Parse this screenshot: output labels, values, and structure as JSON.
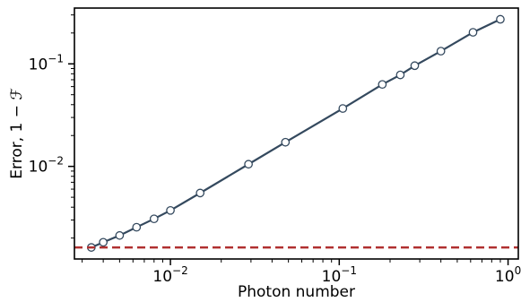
{
  "chart_data": {
    "type": "line",
    "title": "",
    "xlabel": "Photon number",
    "ylabel": "Error, 1 − ℱ",
    "xscale": "log",
    "yscale": "log",
    "xlim": [
      0.0027,
      1.15
    ],
    "ylim": [
      0.00125,
      0.35
    ],
    "grid": false,
    "legend": "none",
    "x_ticks": [
      {
        "value": 0.01,
        "base": "10",
        "exp": "−2"
      },
      {
        "value": 0.1,
        "base": "10",
        "exp": "−1"
      },
      {
        "value": 1,
        "base": "10",
        "exp": "0"
      }
    ],
    "y_ticks": [
      {
        "value": 0.01,
        "base": "10",
        "exp": "−2"
      },
      {
        "value": 0.1,
        "base": "10",
        "exp": "−1"
      }
    ],
    "series": [
      {
        "type": "line",
        "color": "#34495e",
        "marker": "circle-open",
        "x": [
          0.0034,
          0.004,
          0.005,
          0.0063,
          0.008,
          0.01,
          0.015,
          0.029,
          0.048,
          0.105,
          0.18,
          0.23,
          0.28,
          0.4,
          0.62,
          0.9
        ],
        "y": [
          0.00162,
          0.00182,
          0.00212,
          0.00255,
          0.00308,
          0.00372,
          0.0055,
          0.0105,
          0.0172,
          0.0367,
          0.063,
          0.078,
          0.096,
          0.133,
          0.203,
          0.272
        ]
      },
      {
        "type": "hline",
        "color": "#b03030",
        "style": "dashed",
        "y": 0.00162
      }
    ]
  }
}
